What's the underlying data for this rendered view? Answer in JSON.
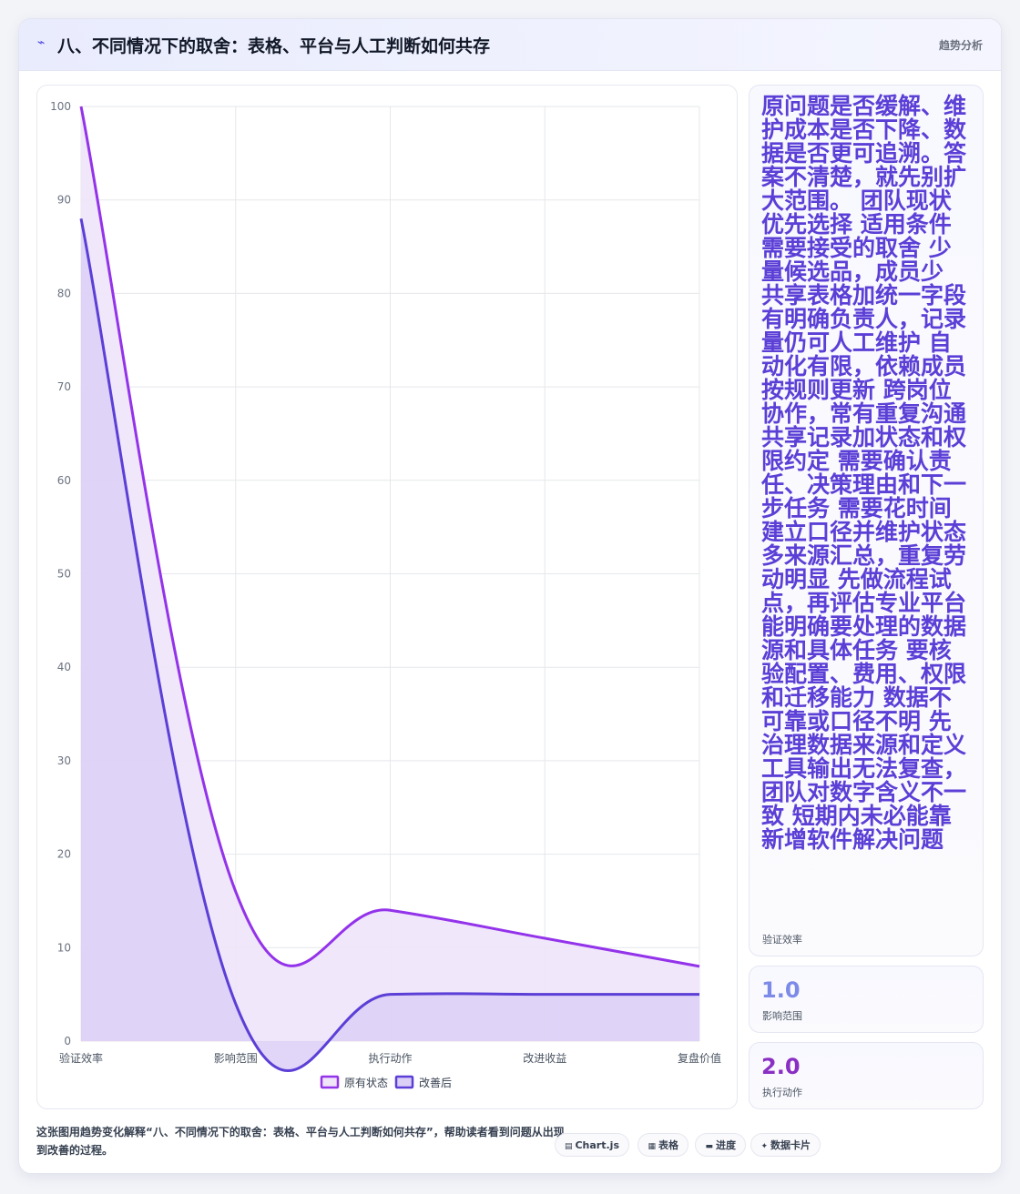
{
  "header": {
    "title": "八、不同情况下的取舍：表格、平台与人工判断如何共存",
    "tag": "趋势分析"
  },
  "stats": [
    {
      "value": "原问题是否缓解、维护成本是否下降、数据是否更可追溯。答案不清楚，就先别扩大范围。 团队现状 优先选择 适用条件 需要接受的取舍 少量候选品，成员少 共享表格加统一字段 有明确负责人，记录量仍可人工维护 自动化有限，依赖成员按规则更新 跨岗位协作，常有重复沟通 共享记录加状态和权限约定 需要确认责任、决策理由和下一步任务 需要花时间建立口径并维护状态 多来源汇总，重复劳动明显 先做流程试点，再评估专业平台 能明确要处理的数据源和具体任务 要核验配置、费用、权限和迁移能力 数据不可靠或口径不明 先治理数据来源和定义 工具输出无法复查，团队对数字含义不一致 短期内未必能靠新增软件解决问题",
      "label": "验证效率"
    },
    {
      "value": "1.0",
      "label": "影响范围"
    },
    {
      "value": "2.0",
      "label": "执行动作"
    }
  ],
  "caption": "这张图用趋势变化解释“八、不同情况下的取舍：表格、平台与人工判断如何共存”，帮助读者看到问题从出现到改善的过程。",
  "chips": [
    {
      "icon": "chart-icon",
      "glyph": "▤",
      "label": "Chart.js"
    },
    {
      "icon": "table-icon",
      "glyph": "▦",
      "label": "表格"
    },
    {
      "icon": "progress-icon",
      "glyph": "▬",
      "label": "进度"
    },
    {
      "icon": "card-icon",
      "glyph": "✦",
      "label": "数据卡片"
    }
  ],
  "chart_data": {
    "type": "area",
    "categories": [
      "验证效率",
      "影响范围",
      "执行动作",
      "改进收益",
      "复盘价值"
    ],
    "ylim": [
      0,
      100
    ],
    "yticks": [
      0,
      10,
      20,
      30,
      40,
      50,
      60,
      70,
      80,
      90,
      100
    ],
    "grid": true,
    "legend_position": "bottom",
    "series": [
      {
        "name": "原有状态",
        "values": [
          100,
          16,
          14,
          11,
          8
        ],
        "color": "#9333ea",
        "fill": "#f0e4f9"
      },
      {
        "name": "改善后",
        "values": [
          88,
          4,
          5,
          5,
          5
        ],
        "color": "#5b3fd6",
        "fill": "#dccff6"
      }
    ]
  }
}
